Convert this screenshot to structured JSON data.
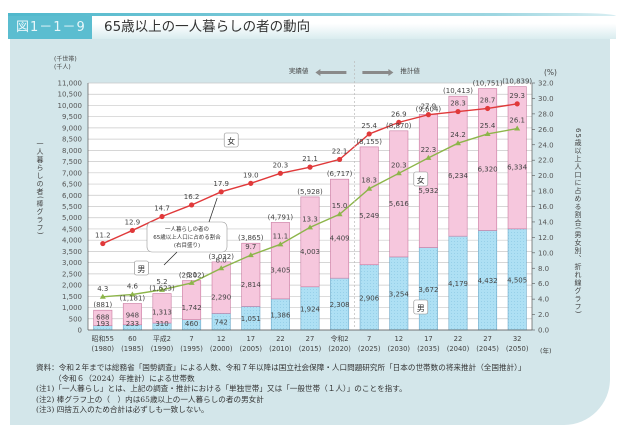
{
  "header": {
    "figure_number": "図1－1－9",
    "title": "65歳以上の一人暮らしの者の動向"
  },
  "chart_data": {
    "type": "bar+line",
    "title": "65歳以上の一人暮らしの者の動向",
    "left_axis": {
      "unit_top": "(千世帯)",
      "unit_bottom": "(千人)",
      "label": "一人暮らしの者(棒グラフ)",
      "range": [
        0,
        11000
      ],
      "step": 500,
      "tick_labels": [
        "0",
        "500",
        "1,000",
        "1,500",
        "2,000",
        "2,500",
        "3,000",
        "3,500",
        "4,000",
        "4,500",
        "5,000",
        "5,500",
        "6,000",
        "6,500",
        "7,000",
        "7,500",
        "8,000",
        "8,500",
        "9,000",
        "9,500",
        "10,000",
        "10,500",
        "11,000"
      ]
    },
    "right_axis": {
      "unit": "(%)",
      "label": "65歳以上人口に占める割合(男女別、折れ線グラフ)",
      "range": [
        0,
        32
      ],
      "step": 2,
      "tick_labels": [
        "0.0",
        "2.0",
        "4.0",
        "6.0",
        "8.0",
        "10.0",
        "12.0",
        "14.0",
        "16.0",
        "18.0",
        "20.0",
        "22.0",
        "24.0",
        "26.0",
        "28.0",
        "30.0",
        "32.0"
      ]
    },
    "x_unit": "(年)",
    "categories": [
      {
        "era": "昭和55",
        "year": "(1980)"
      },
      {
        "era": "60",
        "year": "(1985)"
      },
      {
        "era": "平成2",
        "year": "(1990)"
      },
      {
        "era": "7",
        "year": "(1995)"
      },
      {
        "era": "12",
        "year": "(2000)"
      },
      {
        "era": "17",
        "year": "(2005)"
      },
      {
        "era": "22",
        "year": "(2010)"
      },
      {
        "era": "27",
        "year": "(2015)"
      },
      {
        "era": "令和2",
        "year": "(2020)"
      },
      {
        "era": "7",
        "year": "(2025)"
      },
      {
        "era": "12",
        "year": "(2030)"
      },
      {
        "era": "17",
        "year": "(2035)"
      },
      {
        "era": "22",
        "year": "(2040)"
      },
      {
        "era": "27",
        "year": "(2045)"
      },
      {
        "era": "32",
        "year": "(2050)"
      }
    ],
    "series": [
      {
        "name": "男",
        "kind": "bar",
        "color": "#aee0f4",
        "values": [
          193,
          233,
          310,
          460,
          742,
          1051,
          1386,
          1924,
          2308,
          2906,
          3254,
          3672,
          4179,
          4432,
          4505
        ],
        "labels": [
          "193",
          "233",
          "310",
          "460",
          "742",
          "1,051",
          "1,386",
          "1,924",
          "2,308",
          "2,906",
          "3,254",
          "3,672",
          "4,179",
          "4,432",
          "4,505"
        ]
      },
      {
        "name": "女",
        "kind": "bar",
        "color": "#f6c7dd",
        "values": [
          688,
          948,
          1313,
          1742,
          2290,
          2814,
          3405,
          4003,
          4409,
          5249,
          5616,
          5932,
          6234,
          6320,
          6334
        ],
        "labels": [
          "688",
          "948",
          "1,313",
          "1,742",
          "2,290",
          "2,814",
          "3,405",
          "4,003",
          "4,409",
          "5,249",
          "5,616",
          "5,932",
          "6,234",
          "6,320",
          "6,334"
        ]
      },
      {
        "name": "女 割合",
        "kind": "line",
        "axis": "right",
        "color": "#e0393a",
        "values": [
          11.2,
          12.9,
          14.7,
          16.2,
          17.9,
          19.0,
          20.3,
          21.1,
          22.1,
          25.4,
          26.9,
          27.9,
          28.3,
          28.7,
          29.3
        ],
        "labels": [
          "11.2",
          "12.9",
          "14.7",
          "16.2",
          "17.9",
          "19.0",
          "20.3",
          "21.1",
          "22.1",
          "25.4",
          "26.9",
          "27.9",
          "28.3",
          "28.7",
          "29.3"
        ]
      },
      {
        "name": "男 割合",
        "kind": "line",
        "axis": "right",
        "color": "#8db54a",
        "values": [
          4.3,
          4.6,
          5.2,
          6.1,
          8.0,
          9.7,
          11.1,
          13.3,
          15.0,
          18.3,
          20.3,
          22.3,
          24.2,
          25.4,
          26.1
        ],
        "labels": [
          "4.3",
          "4.6",
          "5.2",
          "6.1",
          "8.0",
          "9.7",
          "11.1",
          "13.3",
          "15.0",
          "18.3",
          "20.3",
          "22.3",
          "24.2",
          "25.4",
          "26.1"
        ]
      }
    ],
    "totals": [
      881,
      1181,
      1623,
      2202,
      3032,
      3865,
      4791,
      5928,
      6717,
      8155,
      8870,
      9604,
      10413,
      10751,
      10839
    ],
    "total_labels": [
      "(881)",
      "(1,181)",
      "(1,623)",
      "(2,202)",
      "(3,032)",
      "(3,865)",
      "(4,791)",
      "(5,928)",
      "(6,717)",
      "(8,155)",
      "(8,870)",
      "(9,604)",
      "(10,413)",
      "(10,751)",
      "(10,839)"
    ],
    "annotations": {
      "actual": "実績値",
      "projected": "推計値",
      "female_tag": "女",
      "male_tag": "男",
      "callout_line1": "一人暮らしの者の",
      "callout_line2": "65歳以上人口に占める割合",
      "callout_line3": "(右目盛り)"
    },
    "grid": true
  },
  "notes": [
    "資料：令和２年までは総務省「国勢調査」による人数、令和７年以降は国立社会保障・人口問題研究所「日本の世帯数の将来推計（全国推計）」",
    "（令和６（2024）年推計）による世帯数",
    "(注1)「一人暮らし」とは、上記の調査・推計における「単独世帯」又は「一般世帯（１人）」のことを指す。",
    "(注2) 棒グラフ上の（　）内は65歳以上の一人暮らしの者の男女計",
    "(注3) 四捨五入のため合計は必ずしも一致しない。"
  ]
}
